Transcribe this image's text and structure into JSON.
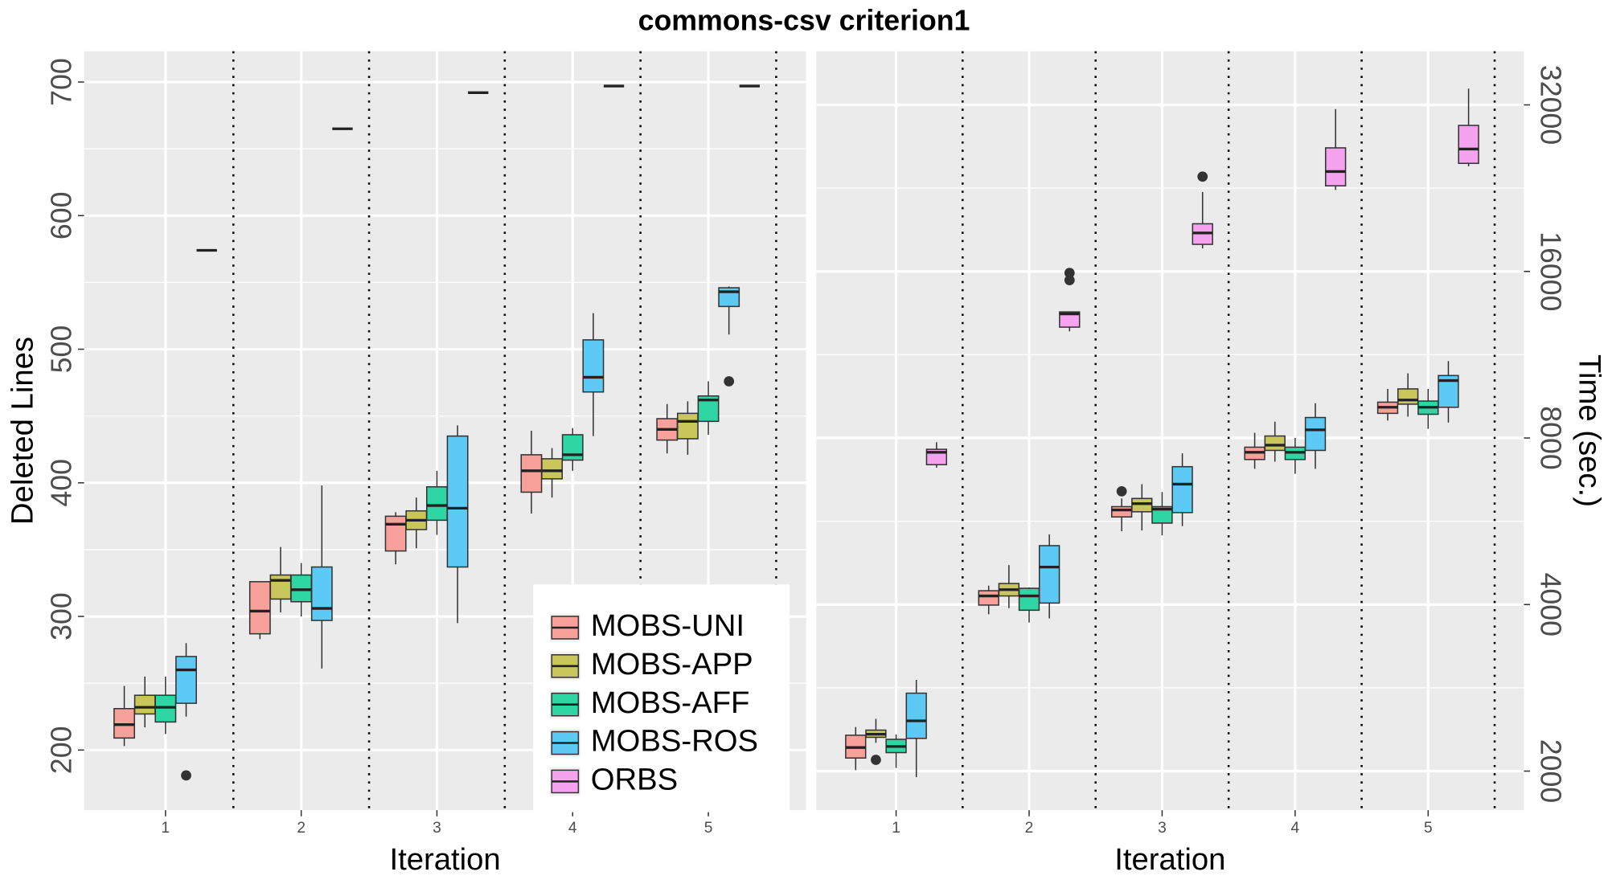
{
  "title": "commons-csv criterion1",
  "chart_data": [
    {
      "type": "box",
      "x_label": "Iteration",
      "y_label": "Deleted Lines",
      "categories": [
        "1",
        "2",
        "3",
        "4",
        "5"
      ],
      "ylim": [
        155,
        723
      ],
      "yticks": [
        200,
        300,
        400,
        500,
        600,
        700
      ],
      "log": false,
      "grid": true,
      "legend": "bottom-right",
      "series": [
        {
          "name": "MOBS-UNI",
          "color": "#f8a19a",
          "values": [
            {
              "min": 203,
              "q1": 209,
              "median": 219,
              "q3": 231,
              "max": 248
            },
            {
              "min": 283,
              "q1": 287,
              "median": 304,
              "q3": 326,
              "max": 326
            },
            {
              "min": 339,
              "q1": 349,
              "median": 369,
              "q3": 375,
              "max": 378
            },
            {
              "min": 377,
              "q1": 393,
              "median": 409,
              "q3": 421,
              "max": 439
            },
            {
              "min": 422,
              "q1": 432,
              "median": 440,
              "q3": 448,
              "max": 459
            }
          ]
        },
        {
          "name": "MOBS-APP",
          "color": "#c9c65c",
          "values": [
            {
              "min": 217,
              "q1": 227,
              "median": 232,
              "q3": 241,
              "max": 255
            },
            {
              "min": 303,
              "q1": 313,
              "median": 327,
              "q3": 331,
              "max": 352
            },
            {
              "min": 351,
              "q1": 365,
              "median": 372,
              "q3": 379,
              "max": 389
            },
            {
              "min": 389,
              "q1": 403,
              "median": 409,
              "q3": 418,
              "max": 426
            },
            {
              "min": 421,
              "q1": 433,
              "median": 446,
              "q3": 452,
              "max": 461
            }
          ]
        },
        {
          "name": "MOBS-AFF",
          "color": "#2ed6a4",
          "values": [
            {
              "min": 212,
              "q1": 221,
              "median": 232,
              "q3": 241,
              "max": 255
            },
            {
              "min": 300,
              "q1": 311,
              "median": 320,
              "q3": 331,
              "max": 340
            },
            {
              "min": 361,
              "q1": 372,
              "median": 383,
              "q3": 397,
              "max": 409
            },
            {
              "min": 409,
              "q1": 417,
              "median": 421,
              "q3": 436,
              "max": 441
            },
            {
              "min": 436,
              "q1": 446,
              "median": 462,
              "q3": 465,
              "max": 476
            }
          ]
        },
        {
          "name": "MOBS-ROS",
          "color": "#5ccaf4",
          "values": [
            {
              "min": 225,
              "q1": 235,
              "median": 260,
              "q3": 270,
              "max": 280,
              "outliers": [
                181
              ]
            },
            {
              "min": 261,
              "q1": 297,
              "median": 306,
              "q3": 337,
              "max": 398
            },
            {
              "min": 295,
              "q1": 337,
              "median": 381,
              "q3": 435,
              "max": 443
            },
            {
              "min": 435,
              "q1": 468,
              "median": 479,
              "q3": 507,
              "max": 527
            },
            {
              "min": 511,
              "q1": 532,
              "median": 543,
              "q3": 546,
              "max": 547,
              "outliers": [
                476
              ]
            }
          ]
        },
        {
          "name": "ORBS",
          "color": "#f5a2ef",
          "values": [
            {
              "min": 574,
              "q1": 574,
              "median": 574,
              "q3": 574,
              "max": 574
            },
            {
              "min": 665,
              "q1": 665,
              "median": 665,
              "q3": 665,
              "max": 665
            },
            {
              "min": 692,
              "q1": 692,
              "median": 692,
              "q3": 692,
              "max": 692
            },
            {
              "min": 697,
              "q1": 697,
              "median": 697,
              "q3": 697,
              "max": 697
            },
            {
              "min": 697,
              "q1": 697,
              "median": 697,
              "q3": 697,
              "max": 697
            }
          ]
        }
      ]
    },
    {
      "type": "box",
      "x_label": "Iteration",
      "y_label": "Time (sec.)",
      "categories": [
        "1",
        "2",
        "3",
        "4",
        "5"
      ],
      "ylim": [
        1700,
        40000
      ],
      "yticks": [
        2000,
        4000,
        8000,
        16000,
        32000
      ],
      "log": true,
      "grid": true,
      "series": [
        {
          "color": "#f8a19a",
          "values": [
            {
              "min": 2008,
              "q1": 2112,
              "median": 2206,
              "q3": 2322,
              "max": 2403
            },
            {
              "min": 3842,
              "q1": 3991,
              "median": 4146,
              "q3": 4237,
              "max": 4328
            },
            {
              "min": 5427,
              "q1": 5760,
              "median": 5930,
              "q3": 6012,
              "max": 6220,
              "outliers": [
                6408
              ]
            },
            {
              "min": 7037,
              "q1": 7315,
              "median": 7538,
              "q3": 7700,
              "max": 8175
            },
            {
              "min": 8603,
              "q1": 8864,
              "median": 9092,
              "q3": 9287,
              "max": 9814
            }
          ]
        },
        {
          "color": "#c9c65c",
          "values": [
            {
              "min": 2250,
              "q1": 2302,
              "median": 2332,
              "q3": 2372,
              "max": 2486,
              "outliers": [
                2096
              ]
            },
            {
              "min": 3941,
              "q1": 4146,
              "median": 4256,
              "q3": 4366,
              "max": 4714
            },
            {
              "min": 5445,
              "q1": 5885,
              "median": 6088,
              "q3": 6220,
              "max": 6602
            },
            {
              "min": 7250,
              "q1": 7598,
              "median": 7765,
              "q3": 8067,
              "max": 8563
            },
            {
              "min": 8745,
              "q1": 9210,
              "median": 9370,
              "q3": 9814,
              "max": 10470
            }
          ]
        },
        {
          "color": "#2ed6a4",
          "values": [
            {
              "min": 2026,
              "q1": 2160,
              "median": 2216,
              "q3": 2283,
              "max": 2330
            },
            {
              "min": 3712,
              "q1": 3907,
              "median": 4146,
              "q3": 4280,
              "max": 4297
            },
            {
              "min": 5334,
              "q1": 5614,
              "median": 5950,
              "q3": 6012,
              "max": 6390
            },
            {
              "min": 6892,
              "q1": 7315,
              "median": 7538,
              "q3": 7700,
              "max": 8000
            },
            {
              "min": 8311,
              "q1": 8830,
              "median": 9092,
              "q3": 9330,
              "max": 9814
            }
          ]
        },
        {
          "color": "#5ccaf4",
          "values": [
            {
              "min": 1950,
              "q1": 2292,
              "median": 2465,
              "q3": 2766,
              "max": 2924
            },
            {
              "min": 3776,
              "q1": 4025,
              "median": 4675,
              "q3": 5111,
              "max": 5358
            },
            {
              "min": 5544,
              "q1": 5865,
              "median": 6602,
              "q3": 7100,
              "max": 7506
            },
            {
              "min": 7037,
              "q1": 7598,
              "median": 8277,
              "q3": 8712,
              "max": 9246
            },
            {
              "min": 8529,
              "q1": 9092,
              "median": 10160,
              "q3": 10375,
              "max": 11020
            }
          ]
        },
        {
          "color": "#f5a2ef",
          "values": [
            {
              "min": 7070,
              "q1": 7160,
              "median": 7538,
              "q3": 7632,
              "max": 7862
            },
            {
              "min": 12470,
              "q1": 12690,
              "median": 13410,
              "q3": 13520,
              "max": 13520,
              "outliers": [
                15430,
                15900
              ]
            },
            {
              "min": 17610,
              "q1": 17910,
              "median": 18780,
              "q3": 19510,
              "max": 22270,
              "outliers": [
                23740
              ]
            },
            {
              "min": 22460,
              "q1": 22850,
              "median": 24250,
              "q3": 26760,
              "max": 31450
            },
            {
              "min": 24780,
              "q1": 25090,
              "median": 26630,
              "q3": 29380,
              "max": 34250
            }
          ]
        }
      ]
    }
  ]
}
